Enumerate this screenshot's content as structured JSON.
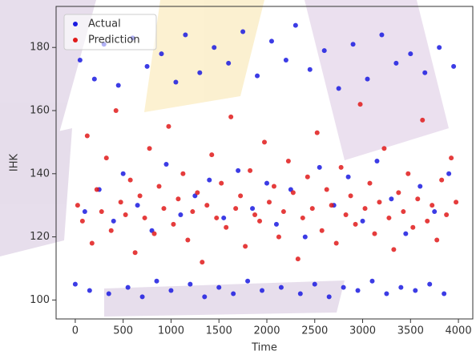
{
  "chart_data": {
    "type": "scatter",
    "xlabel": "Time",
    "ylabel": "IHK",
    "xlim": [
      -200,
      4150
    ],
    "ylim": [
      94,
      193
    ],
    "xticks": [
      0,
      500,
      1000,
      1500,
      2000,
      2500,
      3000,
      3500,
      4000
    ],
    "yticks": [
      100,
      120,
      140,
      160,
      180
    ],
    "legend": "upper left",
    "series": [
      {
        "name": "Actual",
        "color": "#1a1ae0",
        "x": [
          0,
          50,
          100,
          150,
          200,
          250,
          300,
          350,
          400,
          450,
          500,
          550,
          600,
          650,
          700,
          750,
          800,
          850,
          900,
          950,
          1000,
          1050,
          1100,
          1150,
          1200,
          1250,
          1300,
          1350,
          1400,
          1450,
          1500,
          1550,
          1600,
          1650,
          1700,
          1750,
          1800,
          1850,
          1900,
          1950,
          2000,
          2050,
          2100,
          2150,
          2200,
          2250,
          2300,
          2350,
          2400,
          2450,
          2500,
          2550,
          2600,
          2650,
          2700,
          2750,
          2800,
          2850,
          2900,
          2950,
          3000,
          3050,
          3100,
          3150,
          3200,
          3250,
          3300,
          3350,
          3400,
          3450,
          3500,
          3550,
          3600,
          3650,
          3700,
          3750,
          3800,
          3850,
          3900,
          3950
        ],
        "values": [
          105,
          176,
          128,
          103,
          170,
          135,
          181,
          102,
          125,
          168,
          140,
          104,
          183,
          130,
          101,
          174,
          122,
          106,
          178,
          143,
          103,
          169,
          127,
          184,
          105,
          133,
          172,
          101,
          138,
          180,
          104,
          126,
          175,
          102,
          141,
          185,
          106,
          129,
          171,
          103,
          137,
          182,
          124,
          104,
          176,
          135,
          187,
          102,
          120,
          173,
          105,
          142,
          179,
          101,
          130,
          167,
          104,
          139,
          181,
          103,
          125,
          170,
          106,
          144,
          184,
          102,
          132,
          175,
          104,
          121,
          178,
          103,
          136,
          172,
          105,
          128,
          180,
          102,
          140,
          174
        ]
      },
      {
        "name": "Prediction",
        "color": "#e01a1a",
        "x": [
          25,
          75,
          125,
          175,
          225,
          275,
          325,
          375,
          425,
          475,
          525,
          575,
          625,
          675,
          725,
          775,
          825,
          875,
          925,
          975,
          1025,
          1075,
          1125,
          1175,
          1225,
          1275,
          1325,
          1375,
          1425,
          1475,
          1525,
          1575,
          1625,
          1675,
          1725,
          1775,
          1825,
          1875,
          1925,
          1975,
          2025,
          2075,
          2125,
          2175,
          2225,
          2275,
          2325,
          2375,
          2425,
          2475,
          2525,
          2575,
          2625,
          2675,
          2725,
          2775,
          2825,
          2875,
          2925,
          2975,
          3025,
          3075,
          3125,
          3175,
          3225,
          3275,
          3325,
          3375,
          3425,
          3475,
          3525,
          3575,
          3625,
          3675,
          3725,
          3775,
          3825,
          3875,
          3925,
          3975
        ],
        "values": [
          130,
          125,
          152,
          118,
          135,
          128,
          145,
          122,
          160,
          131,
          127,
          138,
          115,
          133,
          126,
          148,
          121,
          136,
          129,
          155,
          124,
          132,
          140,
          119,
          128,
          134,
          112,
          130,
          146,
          126,
          137,
          123,
          158,
          129,
          133,
          117,
          141,
          127,
          125,
          150,
          131,
          136,
          120,
          128,
          144,
          134,
          113,
          126,
          139,
          129,
          153,
          122,
          135,
          130,
          118,
          142,
          127,
          133,
          124,
          162,
          129,
          137,
          121,
          131,
          148,
          126,
          116,
          134,
          128,
          140,
          123,
          132,
          157,
          125,
          130,
          119,
          138,
          127,
          145,
          131
        ]
      }
    ]
  }
}
